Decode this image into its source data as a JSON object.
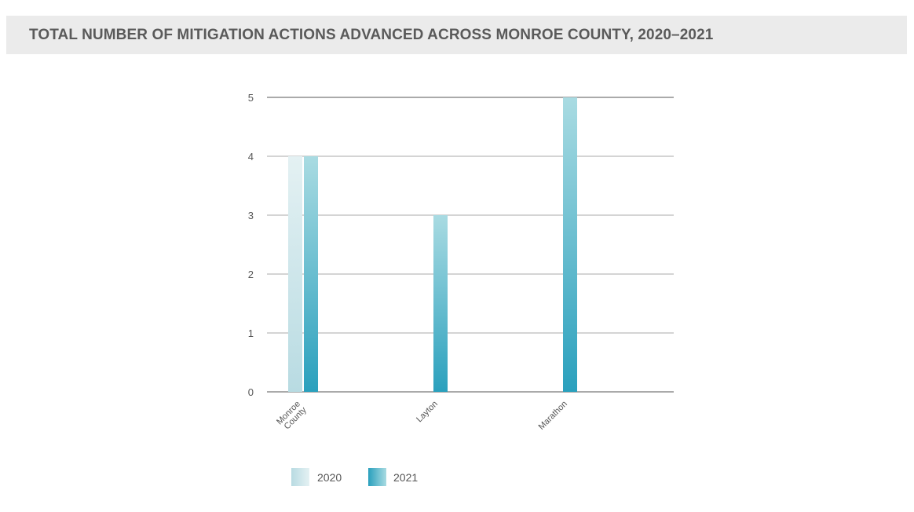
{
  "title": "TOTAL NUMBER OF MITIGATION ACTIONS ADVANCED ACROSS MONROE COUNTY, 2020–2021",
  "chart_data": {
    "type": "bar",
    "title": "TOTAL NUMBER OF MITIGATION ACTIONS ADVANCED ACROSS MONROE COUNTY, 2020–2021",
    "xlabel": "",
    "ylabel": "",
    "categories": [
      [
        "Monroe",
        "County"
      ],
      [
        "Layton"
      ],
      [
        "Marathon"
      ]
    ],
    "series": [
      {
        "name": "2020",
        "values": [
          4,
          0,
          0
        ],
        "color_top": "#e4f1f3",
        "color_bottom": "#b8dbe2"
      },
      {
        "name": "2021",
        "values": [
          4,
          3,
          5
        ],
        "color_top": "#a9dbe2",
        "color_bottom": "#2aa0bd"
      }
    ],
    "yticks": [
      "0",
      "1",
      "2",
      "3",
      "4",
      "5"
    ],
    "ylim": [
      0,
      5
    ],
    "grid": true,
    "legend": "bottom-left"
  }
}
